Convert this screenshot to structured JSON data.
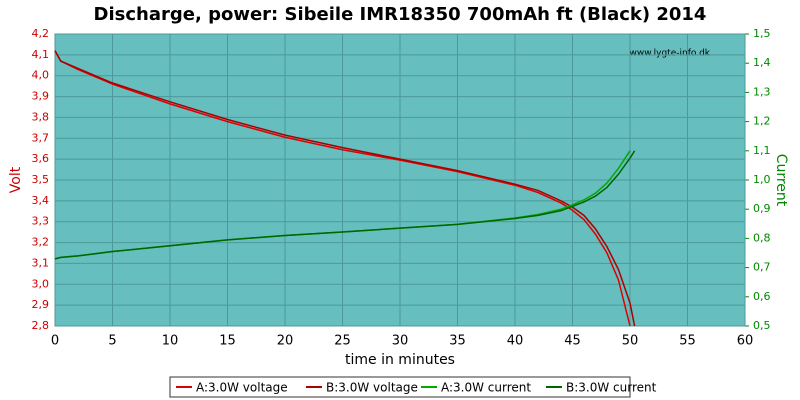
{
  "chart_data": {
    "type": "line",
    "title": "Discharge, power: Sibeile IMR18350 700mAh ft (Black) 2014",
    "watermark": "www.lygte-info.dk",
    "xlabel": "time in minutes",
    "ylabel": "Volt",
    "y2label": "Current",
    "xlim": [
      0,
      60
    ],
    "xticks": [
      0,
      5,
      10,
      15,
      20,
      25,
      30,
      35,
      40,
      45,
      50,
      55,
      60
    ],
    "ylim": [
      2.8,
      4.2
    ],
    "yticks": [
      {
        "value": 2.8,
        "label": "2,8"
      },
      {
        "value": 2.9,
        "label": "2,9"
      },
      {
        "value": 3.0,
        "label": "3,0"
      },
      {
        "value": 3.1,
        "label": "3,1"
      },
      {
        "value": 3.2,
        "label": "3,2"
      },
      {
        "value": 3.3,
        "label": "3,3"
      },
      {
        "value": 3.4,
        "label": "3,4"
      },
      {
        "value": 3.5,
        "label": "3,5"
      },
      {
        "value": 3.6,
        "label": "3,6"
      },
      {
        "value": 3.7,
        "label": "3,7"
      },
      {
        "value": 3.8,
        "label": "3,8"
      },
      {
        "value": 3.9,
        "label": "3,9"
      },
      {
        "value": 4.0,
        "label": "4,0"
      },
      {
        "value": 4.1,
        "label": "4,1"
      },
      {
        "value": 4.2,
        "label": "4,2"
      }
    ],
    "y2lim": [
      0.5,
      1.5
    ],
    "y2ticks": [
      {
        "value": 0.5,
        "label": "0,5"
      },
      {
        "value": 0.6,
        "label": "0,6"
      },
      {
        "value": 0.7,
        "label": "0,7"
      },
      {
        "value": 0.8,
        "label": "0,8"
      },
      {
        "value": 0.9,
        "label": "0,9"
      },
      {
        "value": 1.0,
        "label": "1,0"
      },
      {
        "value": 1.1,
        "label": "1,1"
      },
      {
        "value": 1.2,
        "label": "1,2"
      },
      {
        "value": 1.3,
        "label": "1,3"
      },
      {
        "value": 1.4,
        "label": "1,4"
      },
      {
        "value": 1.5,
        "label": "1,5"
      }
    ],
    "grid": true,
    "legend": "bottom",
    "x": [
      0,
      0.5,
      2,
      5,
      10,
      15,
      20,
      25,
      30,
      35,
      40,
      42,
      44,
      45,
      46,
      47,
      48,
      49,
      50,
      50.4
    ],
    "series": [
      {
        "name": "A:3.0W voltage",
        "color": "#dd0000",
        "values": [
          4.12,
          4.07,
          4.03,
          3.96,
          3.865,
          3.78,
          3.705,
          3.645,
          3.595,
          3.54,
          3.475,
          3.44,
          3.39,
          3.355,
          3.31,
          3.24,
          3.15,
          3.02,
          2.8,
          null
        ]
      },
      {
        "name": "B:3.0W voltage",
        "color": "#aa0000",
        "values": [
          4.12,
          4.07,
          4.035,
          3.965,
          3.875,
          3.79,
          3.715,
          3.655,
          3.6,
          3.545,
          3.48,
          3.45,
          3.4,
          3.37,
          3.33,
          3.265,
          3.18,
          3.07,
          2.91,
          2.8
        ]
      },
      {
        "name": "A:3.0W current",
        "color": "#00aa00",
        "axis": "y2",
        "values": [
          0.73,
          0.735,
          0.74,
          0.755,
          0.775,
          0.795,
          0.81,
          0.822,
          0.835,
          0.848,
          0.87,
          0.882,
          0.9,
          0.915,
          0.932,
          0.955,
          0.99,
          1.04,
          1.1,
          null
        ]
      },
      {
        "name": "B:3.0W current",
        "color": "#006600",
        "axis": "y2",
        "values": [
          0.73,
          0.735,
          0.74,
          0.755,
          0.775,
          0.795,
          0.81,
          0.822,
          0.835,
          0.848,
          0.868,
          0.879,
          0.895,
          0.91,
          0.925,
          0.945,
          0.975,
          1.02,
          1.075,
          1.1
        ]
      }
    ]
  }
}
